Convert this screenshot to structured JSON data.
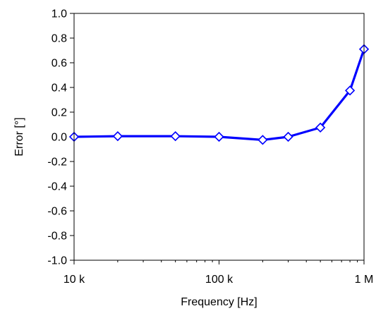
{
  "chart_data": {
    "type": "line",
    "xlabel": "Frequency [Hz]",
    "ylabel": "Error [°]",
    "x_scale": "log",
    "xlim": [
      10000,
      1000000
    ],
    "ylim": [
      -1.0,
      1.0
    ],
    "x_ticks": [
      {
        "value": 10000,
        "label": "10 k"
      },
      {
        "value": 100000,
        "label": "100 k"
      },
      {
        "value": 1000000,
        "label": "1 M"
      }
    ],
    "y_ticks": [
      {
        "value": 1.0,
        "label": "1.0"
      },
      {
        "value": 0.8,
        "label": "0.8"
      },
      {
        "value": 0.6,
        "label": "0.6"
      },
      {
        "value": 0.4,
        "label": "0.4"
      },
      {
        "value": 0.2,
        "label": "0.2"
      },
      {
        "value": 0.0,
        "label": "0.0"
      },
      {
        "value": -0.2,
        "label": "-0.2"
      },
      {
        "value": -0.4,
        "label": "-0.4"
      },
      {
        "value": -0.6,
        "label": "-0.6"
      },
      {
        "value": -0.8,
        "label": "-0.8"
      },
      {
        "value": -1.0,
        "label": "-1.0"
      }
    ],
    "grid": false,
    "legend": "none",
    "series": [
      {
        "color": "#0000ff",
        "marker": "diamond-open",
        "x": [
          10000,
          20000,
          50000,
          100000,
          200000,
          300000,
          500000,
          800000,
          1000000
        ],
        "y": [
          0.0,
          0.005,
          0.005,
          0.0,
          -0.025,
          0.0,
          0.075,
          0.375,
          0.71
        ]
      }
    ]
  }
}
